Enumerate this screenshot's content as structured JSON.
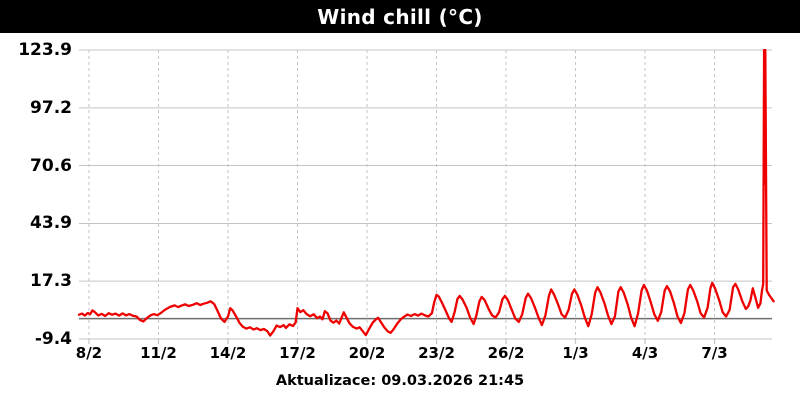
{
  "header": {
    "title": "Wind chill (°C)",
    "bg": "#000000",
    "fg": "#ffffff"
  },
  "footer": {
    "text": "Aktualizace: 09.03.2026 21:45"
  },
  "colors": {
    "line": "#ee0000",
    "grid": "#c4c4c4",
    "zero_line": "#6e6e6e",
    "label": "#000000",
    "title_bar": "#000000",
    "title_text": "#ffffff"
  },
  "chart_data": {
    "type": "line",
    "title": "Wind chill (°C)",
    "xlabel": "",
    "ylabel": "",
    "grid": true,
    "legend_position": "none",
    "ylim": [
      -9.4,
      123.9
    ],
    "x_range_days": [
      -0.43,
      29.48
    ],
    "x_unit": "days since 8 Feb 2026 00:00",
    "zero_line": 0,
    "y_ticks": [
      {
        "label": "123.9",
        "value": 123.9
      },
      {
        "label": "97.2",
        "value": 97.2
      },
      {
        "label": "70.6",
        "value": 70.6
      },
      {
        "label": "43.9",
        "value": 43.9
      },
      {
        "label": "17.3",
        "value": 17.3
      },
      {
        "label": "-9.4",
        "value": -9.4
      }
    ],
    "x_ticks": [
      {
        "label": "8/2",
        "t": 0
      },
      {
        "label": "11/2",
        "t": 3
      },
      {
        "label": "14/2",
        "t": 6
      },
      {
        "label": "17/2",
        "t": 9
      },
      {
        "label": "20/2",
        "t": 12
      },
      {
        "label": "23/2",
        "t": 15
      },
      {
        "label": "26/2",
        "t": 18
      },
      {
        "label": "1/3",
        "t": 21
      },
      {
        "label": "4/3",
        "t": 24
      },
      {
        "label": "7/3",
        "t": 27
      }
    ],
    "series": [
      {
        "name": "Wind chill",
        "color": "#ee0000",
        "points": [
          [
            -0.43,
            1.8
          ],
          [
            -0.3,
            2.3
          ],
          [
            -0.18,
            1.4
          ],
          [
            -0.05,
            2.6
          ],
          [
            0.05,
            2.0
          ],
          [
            0.15,
            3.8
          ],
          [
            0.25,
            3.0
          ],
          [
            0.4,
            1.5
          ],
          [
            0.55,
            2.2
          ],
          [
            0.7,
            1.2
          ],
          [
            0.85,
            2.5
          ],
          [
            1.0,
            1.8
          ],
          [
            1.15,
            2.3
          ],
          [
            1.3,
            1.4
          ],
          [
            1.45,
            2.4
          ],
          [
            1.6,
            1.5
          ],
          [
            1.75,
            2.1
          ],
          [
            1.9,
            1.3
          ],
          [
            2.05,
            1.0
          ],
          [
            2.2,
            -0.6
          ],
          [
            2.35,
            -1.3
          ],
          [
            2.5,
            0.3
          ],
          [
            2.65,
            1.5
          ],
          [
            2.8,
            2.1
          ],
          [
            2.95,
            1.6
          ],
          [
            3.1,
            2.6
          ],
          [
            3.3,
            4.2
          ],
          [
            3.5,
            5.4
          ],
          [
            3.7,
            6.1
          ],
          [
            3.85,
            5.3
          ],
          [
            4.0,
            6.0
          ],
          [
            4.15,
            6.6
          ],
          [
            4.3,
            5.8
          ],
          [
            4.5,
            6.4
          ],
          [
            4.65,
            7.1
          ],
          [
            4.8,
            6.3
          ],
          [
            4.95,
            6.9
          ],
          [
            5.1,
            7.3
          ],
          [
            5.25,
            8.0
          ],
          [
            5.4,
            6.8
          ],
          [
            5.55,
            3.5
          ],
          [
            5.7,
            0.0
          ],
          [
            5.85,
            -1.5
          ],
          [
            6.0,
            1.0
          ],
          [
            6.1,
            4.8
          ],
          [
            6.2,
            3.8
          ],
          [
            6.35,
            1.0
          ],
          [
            6.5,
            -2.0
          ],
          [
            6.65,
            -3.8
          ],
          [
            6.8,
            -4.6
          ],
          [
            6.95,
            -4.0
          ],
          [
            7.1,
            -5.0
          ],
          [
            7.25,
            -4.4
          ],
          [
            7.4,
            -5.3
          ],
          [
            7.55,
            -4.8
          ],
          [
            7.7,
            -5.8
          ],
          [
            7.82,
            -7.8
          ],
          [
            7.95,
            -6.0
          ],
          [
            8.1,
            -3.2
          ],
          [
            8.25,
            -3.9
          ],
          [
            8.4,
            -3.0
          ],
          [
            8.5,
            -4.3
          ],
          [
            8.65,
            -2.6
          ],
          [
            8.8,
            -3.4
          ],
          [
            8.92,
            -1.8
          ],
          [
            9.0,
            4.8
          ],
          [
            9.12,
            3.0
          ],
          [
            9.25,
            3.9
          ],
          [
            9.4,
            2.0
          ],
          [
            9.55,
            1.1
          ],
          [
            9.7,
            2.0
          ],
          [
            9.85,
            0.2
          ],
          [
            9.97,
            1.0
          ],
          [
            10.08,
            -0.3
          ],
          [
            10.18,
            3.4
          ],
          [
            10.3,
            2.4
          ],
          [
            10.42,
            -0.8
          ],
          [
            10.55,
            -1.9
          ],
          [
            10.68,
            -0.9
          ],
          [
            10.8,
            -2.3
          ],
          [
            10.9,
            0.4
          ],
          [
            11.0,
            2.9
          ],
          [
            11.12,
            0.4
          ],
          [
            11.25,
            -2.2
          ],
          [
            11.4,
            -3.8
          ],
          [
            11.55,
            -4.6
          ],
          [
            11.68,
            -4.0
          ],
          [
            11.8,
            -5.6
          ],
          [
            11.95,
            -7.6
          ],
          [
            12.1,
            -4.6
          ],
          [
            12.25,
            -1.8
          ],
          [
            12.38,
            -0.4
          ],
          [
            12.48,
            0.4
          ],
          [
            12.6,
            -1.6
          ],
          [
            12.75,
            -4.1
          ],
          [
            12.9,
            -5.9
          ],
          [
            13.02,
            -6.6
          ],
          [
            13.15,
            -4.9
          ],
          [
            13.3,
            -2.4
          ],
          [
            13.45,
            -0.4
          ],
          [
            13.6,
            0.9
          ],
          [
            13.75,
            1.9
          ],
          [
            13.9,
            1.2
          ],
          [
            14.05,
            2.1
          ],
          [
            14.2,
            1.4
          ],
          [
            14.35,
            2.3
          ],
          [
            14.5,
            1.5
          ],
          [
            14.65,
            1.0
          ],
          [
            14.8,
            2.5
          ],
          [
            14.9,
            7.5
          ],
          [
            15.0,
            11.0
          ],
          [
            15.1,
            10.2
          ],
          [
            15.25,
            7.0
          ],
          [
            15.4,
            3.5
          ],
          [
            15.55,
            0.0
          ],
          [
            15.65,
            -1.5
          ],
          [
            15.78,
            3.0
          ],
          [
            15.9,
            9.0
          ],
          [
            16.0,
            10.5
          ],
          [
            16.12,
            8.8
          ],
          [
            16.3,
            5.0
          ],
          [
            16.45,
            0.5
          ],
          [
            16.6,
            -2.5
          ],
          [
            16.72,
            1.5
          ],
          [
            16.85,
            8.0
          ],
          [
            16.95,
            10.0
          ],
          [
            17.08,
            8.5
          ],
          [
            17.25,
            4.5
          ],
          [
            17.4,
            1.5
          ],
          [
            17.55,
            0.5
          ],
          [
            17.7,
            3.0
          ],
          [
            17.85,
            9.0
          ],
          [
            17.95,
            10.5
          ],
          [
            18.08,
            8.5
          ],
          [
            18.25,
            4.0
          ],
          [
            18.4,
            0.0
          ],
          [
            18.55,
            -1.5
          ],
          [
            18.7,
            2.0
          ],
          [
            18.85,
            9.5
          ],
          [
            18.95,
            11.5
          ],
          [
            19.08,
            9.5
          ],
          [
            19.25,
            5.0
          ],
          [
            19.4,
            0.5
          ],
          [
            19.55,
            -3.0
          ],
          [
            19.7,
            1.5
          ],
          [
            19.85,
            10.5
          ],
          [
            19.95,
            13.5
          ],
          [
            20.08,
            11.0
          ],
          [
            20.25,
            6.5
          ],
          [
            20.4,
            2.0
          ],
          [
            20.55,
            0.5
          ],
          [
            20.7,
            4.0
          ],
          [
            20.85,
            11.5
          ],
          [
            20.95,
            13.5
          ],
          [
            21.08,
            11.0
          ],
          [
            21.25,
            6.0
          ],
          [
            21.4,
            0.5
          ],
          [
            21.55,
            -3.5
          ],
          [
            21.7,
            2.0
          ],
          [
            21.85,
            12.0
          ],
          [
            21.95,
            14.5
          ],
          [
            22.08,
            12.0
          ],
          [
            22.25,
            7.0
          ],
          [
            22.4,
            1.5
          ],
          [
            22.55,
            -2.5
          ],
          [
            22.7,
            1.0
          ],
          [
            22.85,
            12.5
          ],
          [
            22.95,
            14.5
          ],
          [
            23.08,
            12.0
          ],
          [
            23.25,
            6.5
          ],
          [
            23.4,
            0.5
          ],
          [
            23.55,
            -3.5
          ],
          [
            23.7,
            2.5
          ],
          [
            23.85,
            13.0
          ],
          [
            23.95,
            15.5
          ],
          [
            24.08,
            13.0
          ],
          [
            24.25,
            7.5
          ],
          [
            24.4,
            2.0
          ],
          [
            24.55,
            -1.0
          ],
          [
            24.7,
            3.0
          ],
          [
            24.85,
            13.0
          ],
          [
            24.95,
            15.0
          ],
          [
            25.08,
            12.5
          ],
          [
            25.25,
            7.0
          ],
          [
            25.4,
            1.0
          ],
          [
            25.55,
            -2.0
          ],
          [
            25.7,
            2.5
          ],
          [
            25.85,
            13.5
          ],
          [
            25.95,
            15.5
          ],
          [
            26.08,
            13.0
          ],
          [
            26.25,
            8.0
          ],
          [
            26.4,
            2.5
          ],
          [
            26.55,
            0.5
          ],
          [
            26.7,
            5.0
          ],
          [
            26.82,
            14.0
          ],
          [
            26.9,
            16.5
          ],
          [
            27.02,
            14.0
          ],
          [
            27.2,
            8.5
          ],
          [
            27.35,
            3.0
          ],
          [
            27.5,
            1.0
          ],
          [
            27.65,
            4.0
          ],
          [
            27.8,
            14.5
          ],
          [
            27.9,
            16.0
          ],
          [
            28.02,
            13.5
          ],
          [
            28.2,
            8.0
          ],
          [
            28.35,
            4.5
          ],
          [
            28.45,
            5.5
          ],
          [
            28.55,
            8.5
          ],
          [
            28.65,
            14.0
          ],
          [
            28.78,
            9.0
          ],
          [
            28.88,
            5.0
          ],
          [
            28.98,
            7.0
          ],
          [
            29.05,
            13.0
          ],
          [
            29.1,
            16.0
          ],
          [
            29.14,
            123.9
          ],
          [
            29.17,
            62.0
          ],
          [
            29.19,
            123.9
          ],
          [
            29.25,
            13.0
          ],
          [
            29.35,
            11.0
          ],
          [
            29.45,
            9.5
          ],
          [
            29.55,
            8.0
          ]
        ]
      }
    ]
  }
}
